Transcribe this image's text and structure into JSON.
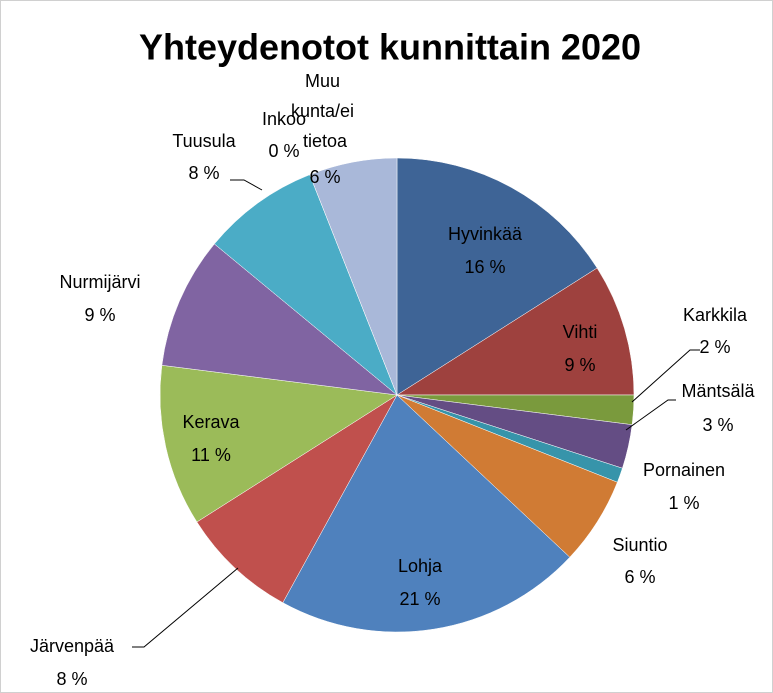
{
  "chart_data": {
    "type": "pie",
    "title": "Yhteydenotot kunnittain 2020",
    "categories": [
      "Hyvinkää",
      "Vihti",
      "Karkkila",
      "Mäntsälä",
      "Pornainen",
      "Siuntio",
      "Lohja",
      "Järvenpää",
      "Kerava",
      "Nurmijärvi",
      "Tuusula",
      "Inkoo",
      "Muu kunta/ei tietoa"
    ],
    "values": [
      16,
      9,
      2,
      3,
      1,
      6,
      21,
      8,
      11,
      9,
      8,
      0,
      6
    ],
    "value_labels": [
      "16 %",
      "9 %",
      "2 %",
      "3 %",
      "1 %",
      "6 %",
      "21 %",
      "8 %",
      "11 %",
      "9 %",
      "8 %",
      "0 %",
      "6 %"
    ],
    "colors": [
      "#3e6496",
      "#9e413e",
      "#7a9a3d",
      "#644d84",
      "#3794aa",
      "#d07b34",
      "#4f81bd",
      "#c0504d",
      "#9bbb59",
      "#8064a2",
      "#4bacc6",
      "#f79646",
      "#a9b8d9"
    ]
  }
}
